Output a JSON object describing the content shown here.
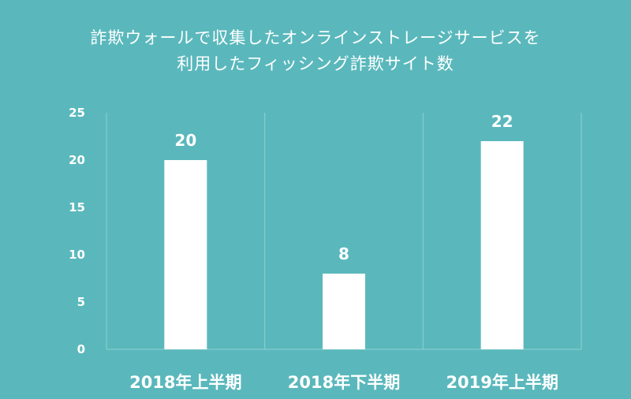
{
  "title_lines": [
    "詐欺ウォールで収集したオンラインストレージサービスを",
    "利用したフィッシング詐欺サイト数"
  ],
  "colors": {
    "background": "#5ab8bc",
    "bar": "#ffffff",
    "grid": "#8fd0d2"
  },
  "chart_data": {
    "type": "bar",
    "title": "詐欺ウォールで収集したオンラインストレージサービスを利用したフィッシング詐欺サイト数",
    "categories": [
      "2018年上半期",
      "2018年下半期",
      "2019年上半期"
    ],
    "values": [
      20,
      8,
      22
    ],
    "yticks": [
      0,
      5,
      10,
      15,
      20,
      25
    ],
    "ylim": [
      0,
      25
    ],
    "xlabel": "",
    "ylabel": "",
    "grid": true
  }
}
